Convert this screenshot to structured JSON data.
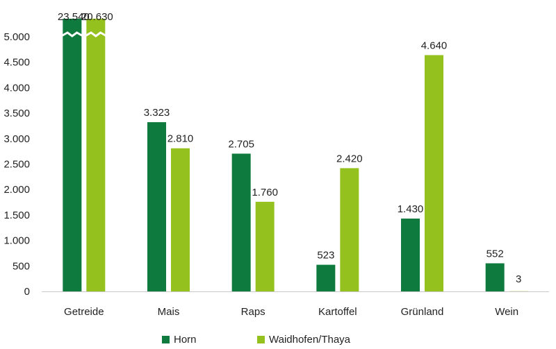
{
  "chart_data": {
    "type": "bar",
    "categories": [
      "Getreide",
      "Mais",
      "Raps",
      "Kartoffel",
      "Grünland",
      "Wein"
    ],
    "series": [
      {
        "name": "Horn",
        "color": "#0e7a3d",
        "values": [
          23540,
          3323,
          2705,
          523,
          1430,
          552
        ],
        "labels": [
          "23.540",
          "3.323",
          "2.705",
          "523",
          "1.430",
          "552"
        ]
      },
      {
        "name": "Waidhofen/Thaya",
        "color": "#95c11f",
        "values": [
          20630,
          2810,
          1760,
          2420,
          4640,
          3
        ],
        "labels": [
          "20.630",
          "2.810",
          "1.760",
          "2.420",
          "4.640",
          "3"
        ]
      }
    ],
    "yticks": [
      0,
      500,
      1000,
      1500,
      2000,
      2500,
      3000,
      3500,
      4000,
      4500,
      5000
    ],
    "ytick_labels": [
      "0",
      "500",
      "1.000",
      "1.500",
      "2.000",
      "2.500",
      "3.000",
      "3.500",
      "4.000",
      "4.500",
      "5.000"
    ],
    "ylim": [
      0,
      5000
    ],
    "axis_break": true,
    "legend_position": "bottom",
    "grid": false
  }
}
